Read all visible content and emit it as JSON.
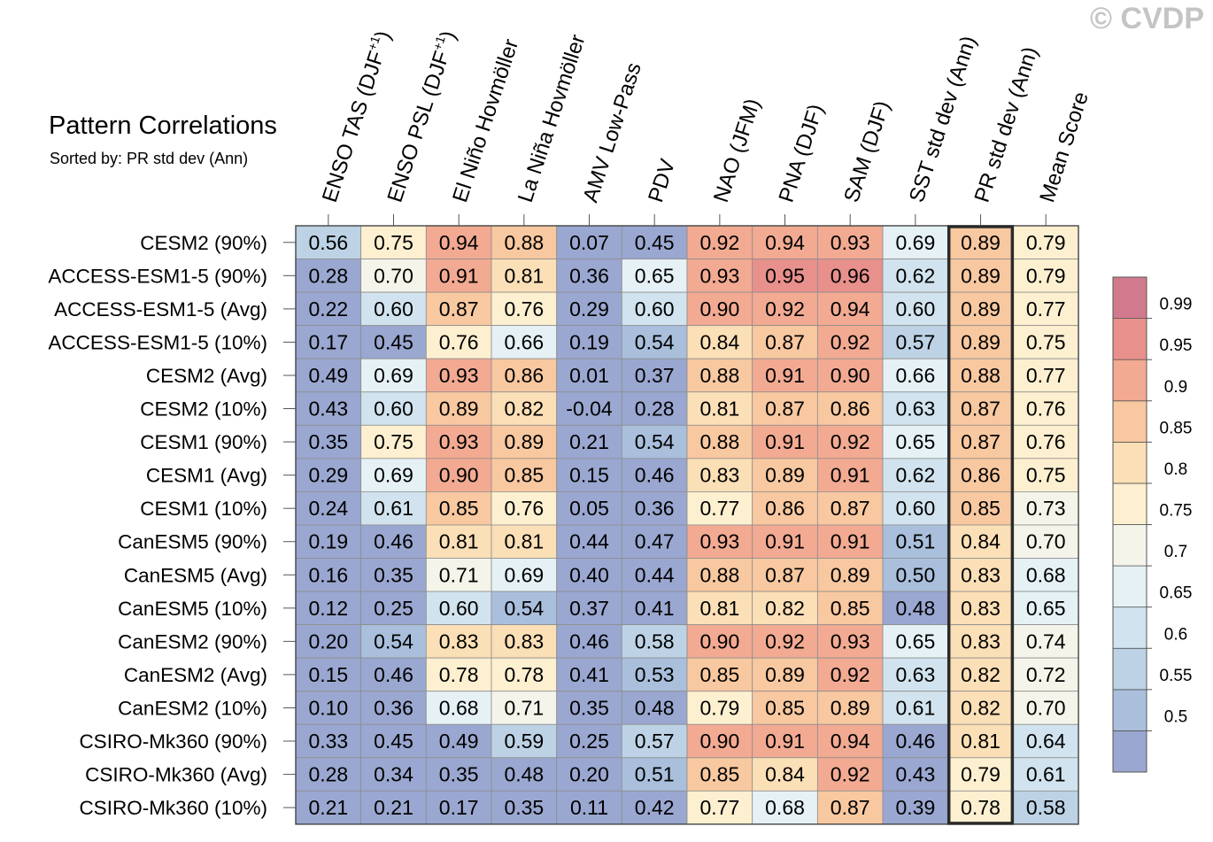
{
  "watermark": "© CVDP",
  "chart_data": {
    "type": "heatmap",
    "title": "Pattern Correlations",
    "subtitle": "Sorted by: PR std dev (Ann)",
    "columns": [
      "ENSO TAS (DJF+1)",
      "ENSO PSL (DJF+1)",
      "El Niño Hovmöller",
      "La Niña Hovmöller",
      "AMV Low-Pass",
      "PDV",
      "NAO (JFM)",
      "PNA (DJF)",
      "SAM (DJF)",
      "SST std dev (Ann)",
      "PR std dev (Ann)",
      "Mean Score"
    ],
    "column_superscripts": [
      "+1",
      "+1",
      "",
      "",
      "",
      "",
      "",
      "",
      "",
      "",
      "",
      ""
    ],
    "highlighted_column": "PR std dev (Ann)",
    "rows": [
      "CESM2 (90%)",
      "ACCESS-ESM1-5 (90%)",
      "ACCESS-ESM1-5 (Avg)",
      "ACCESS-ESM1-5 (10%)",
      "CESM2 (Avg)",
      "CESM2 (10%)",
      "CESM1 (90%)",
      "CESM1 (Avg)",
      "CESM1 (10%)",
      "CanESM5 (90%)",
      "CanESM5 (Avg)",
      "CanESM5 (10%)",
      "CanESM2 (90%)",
      "CanESM2 (Avg)",
      "CanESM2 (10%)",
      "CSIRO-Mk360 (90%)",
      "CSIRO-Mk360 (Avg)",
      "CSIRO-Mk360 (10%)"
    ],
    "values": [
      [
        "0.56",
        "0.75",
        "0.94",
        "0.88",
        "0.07",
        "0.45",
        "0.92",
        "0.94",
        "0.93",
        "0.69",
        "0.89",
        "0.79"
      ],
      [
        "0.28",
        "0.70",
        "0.91",
        "0.81",
        "0.36",
        "0.65",
        "0.93",
        "0.95",
        "0.96",
        "0.62",
        "0.89",
        "0.79"
      ],
      [
        "0.22",
        "0.60",
        "0.87",
        "0.76",
        "0.29",
        "0.60",
        "0.90",
        "0.92",
        "0.94",
        "0.60",
        "0.89",
        "0.77"
      ],
      [
        "0.17",
        "0.45",
        "0.76",
        "0.66",
        "0.19",
        "0.54",
        "0.84",
        "0.87",
        "0.92",
        "0.57",
        "0.89",
        "0.75"
      ],
      [
        "0.49",
        "0.69",
        "0.93",
        "0.86",
        "0.01",
        "0.37",
        "0.88",
        "0.91",
        "0.90",
        "0.66",
        "0.88",
        "0.77"
      ],
      [
        "0.43",
        "0.60",
        "0.89",
        "0.82",
        "-0.04",
        "0.28",
        "0.81",
        "0.87",
        "0.86",
        "0.63",
        "0.87",
        "0.76"
      ],
      [
        "0.35",
        "0.75",
        "0.93",
        "0.89",
        "0.21",
        "0.54",
        "0.88",
        "0.91",
        "0.92",
        "0.65",
        "0.87",
        "0.76"
      ],
      [
        "0.29",
        "0.69",
        "0.90",
        "0.85",
        "0.15",
        "0.46",
        "0.83",
        "0.89",
        "0.91",
        "0.62",
        "0.86",
        "0.75"
      ],
      [
        "0.24",
        "0.61",
        "0.85",
        "0.76",
        "0.05",
        "0.36",
        "0.77",
        "0.86",
        "0.87",
        "0.60",
        "0.85",
        "0.73"
      ],
      [
        "0.19",
        "0.46",
        "0.81",
        "0.81",
        "0.44",
        "0.47",
        "0.93",
        "0.91",
        "0.91",
        "0.51",
        "0.84",
        "0.70"
      ],
      [
        "0.16",
        "0.35",
        "0.71",
        "0.69",
        "0.40",
        "0.44",
        "0.88",
        "0.87",
        "0.89",
        "0.50",
        "0.83",
        "0.68"
      ],
      [
        "0.12",
        "0.25",
        "0.60",
        "0.54",
        "0.37",
        "0.41",
        "0.81",
        "0.82",
        "0.85",
        "0.48",
        "0.83",
        "0.65"
      ],
      [
        "0.20",
        "0.54",
        "0.83",
        "0.83",
        "0.46",
        "0.58",
        "0.90",
        "0.92",
        "0.93",
        "0.65",
        "0.83",
        "0.74"
      ],
      [
        "0.15",
        "0.46",
        "0.78",
        "0.78",
        "0.41",
        "0.53",
        "0.85",
        "0.89",
        "0.92",
        "0.63",
        "0.82",
        "0.72"
      ],
      [
        "0.10",
        "0.36",
        "0.68",
        "0.71",
        "0.35",
        "0.48",
        "0.79",
        "0.85",
        "0.89",
        "0.61",
        "0.82",
        "0.70"
      ],
      [
        "0.33",
        "0.45",
        "0.49",
        "0.59",
        "0.25",
        "0.57",
        "0.90",
        "0.91",
        "0.94",
        "0.46",
        "0.81",
        "0.64"
      ],
      [
        "0.28",
        "0.34",
        "0.35",
        "0.48",
        "0.20",
        "0.51",
        "0.85",
        "0.84",
        "0.92",
        "0.43",
        "0.79",
        "0.61"
      ],
      [
        "0.21",
        "0.21",
        "0.17",
        "0.35",
        "0.11",
        "0.42",
        "0.77",
        "0.68",
        "0.87",
        "0.39",
        "0.78",
        "0.58"
      ]
    ],
    "colorbar": {
      "levels": [
        "0.99",
        "0.95",
        "0.9",
        "0.85",
        "0.8",
        "0.75",
        "0.7",
        "0.65",
        "0.6",
        "0.55",
        "0.5"
      ],
      "boundaries": [
        0.5,
        0.55,
        0.6,
        0.65,
        0.7,
        0.75,
        0.8,
        0.85,
        0.9,
        0.95,
        0.99
      ],
      "colors": [
        "#9aa7d0",
        "#a9bfdc",
        "#bdd3e5",
        "#d1e3ee",
        "#e5f1f5",
        "#f4f4ea",
        "#fdf0d0",
        "#fbdfb6",
        "#f8c8a0",
        "#f2aa92",
        "#e8908c",
        "#d27a8d"
      ],
      "placement": "right"
    }
  }
}
